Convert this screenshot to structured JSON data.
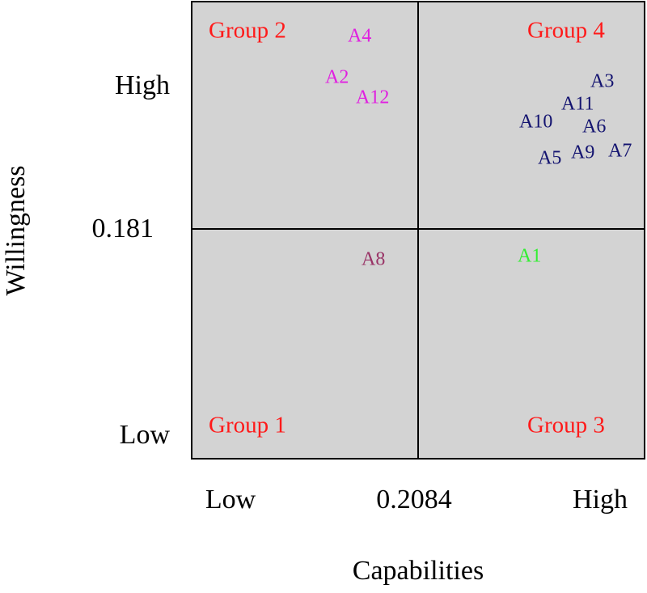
{
  "quadrant": {
    "x_axis": {
      "title": "Capabilities",
      "ticks": [
        "Low",
        "0.2084",
        "High"
      ]
    },
    "y_axis": {
      "title": "Willingness",
      "ticks": [
        "High",
        "0.181",
        "Low"
      ]
    },
    "groups": [
      {
        "label": "Group 2",
        "color": "#ff1a1a"
      },
      {
        "label": "Group 4",
        "color": "#ff1a1a"
      },
      {
        "label": "Group 1",
        "color": "#ff1a1a"
      },
      {
        "label": "Group 3",
        "color": "#ff1a1a"
      }
    ],
    "points": [
      {
        "label": "A4",
        "color": "#e020e0"
      },
      {
        "label": "A2",
        "color": "#e020e0"
      },
      {
        "label": "A12",
        "color": "#e020e0"
      },
      {
        "label": "A3",
        "color": "#141470"
      },
      {
        "label": "A11",
        "color": "#141470"
      },
      {
        "label": "A10",
        "color": "#141470"
      },
      {
        "label": "A6",
        "color": "#141470"
      },
      {
        "label": "A7",
        "color": "#141470"
      },
      {
        "label": "A9",
        "color": "#141470"
      },
      {
        "label": "A5",
        "color": "#141470"
      },
      {
        "label": "A8",
        "color": "#993366"
      },
      {
        "label": "A1",
        "color": "#33ee33"
      }
    ]
  }
}
